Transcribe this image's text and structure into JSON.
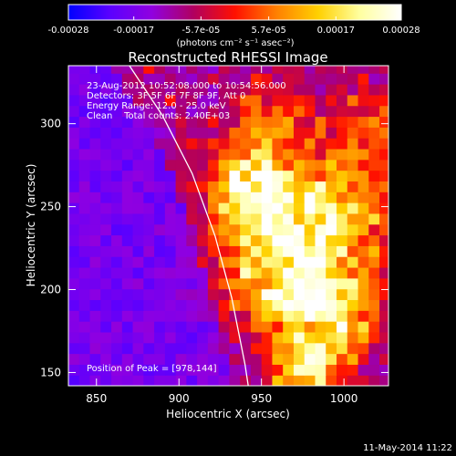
{
  "chart_data": {
    "type": "heatmap",
    "title": "Reconstructed RHESSI Image",
    "xlabel": "Heliocentric X (arcsec)",
    "ylabel": "Heliocentric Y (arcsec)",
    "xlim": [
      833,
      1027
    ],
    "ylim": [
      142,
      335
    ],
    "xticks": [
      850,
      900,
      950,
      1000
    ],
    "yticks": [
      150,
      200,
      250,
      300
    ],
    "colorbar": {
      "min": -0.00028,
      "max": 0.00028,
      "tick_labels": [
        "-0.00028",
        "-0.00017",
        "-5.7e-05",
        "5.7e-05",
        "0.00017",
        "0.00028"
      ],
      "tick_values": [
        -0.00028,
        -0.00017,
        -5.7e-05,
        5.7e-05,
        0.00017,
        0.00028
      ],
      "unit_label": "(photons cm⁻² s⁻¹ asec⁻²)",
      "colors": [
        "#0000ff",
        "#5a00ff",
        "#9000e0",
        "#b00060",
        "#ff1000",
        "#ff8000",
        "#ffd000",
        "#ffffa0",
        "#ffffff"
      ]
    },
    "annotations": [
      "23-Aug-2012 10:52:08.000 to 10:54:56.000",
      "Detectors: 3F 5F 6F 7F 8F 9F, Att 0",
      "Energy Range: 12.0 - 25.0 keV",
      "Clean    Total counts: 2.40E+03"
    ],
    "peak_label": "Position of Peak = [978,144]",
    "peak": [
      978,
      144
    ],
    "limb": [
      [
        870,
        335
      ],
      [
        890,
        305
      ],
      [
        908,
        270
      ],
      [
        922,
        232
      ],
      [
        932,
        195
      ],
      [
        940,
        155
      ],
      [
        942,
        142
      ]
    ],
    "pixel_size": 6.5
  },
  "timestamp": "11-May-2014 11:22"
}
